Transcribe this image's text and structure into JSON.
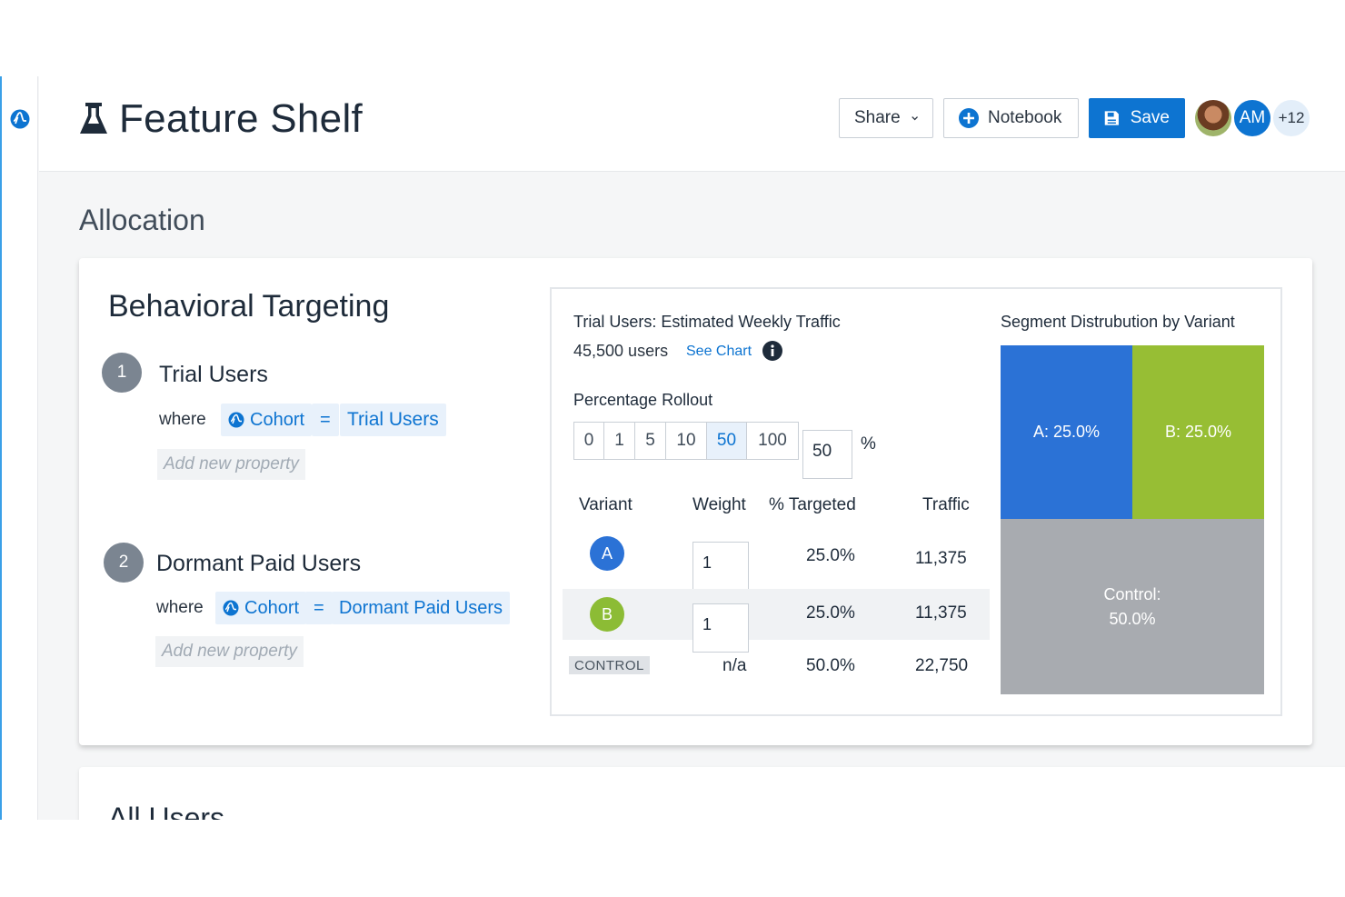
{
  "app": {
    "title": "Feature Shelf",
    "icons": {
      "rail": "amplitude-logo-icon",
      "title": "flask-icon"
    }
  },
  "header": {
    "share_label": "Share",
    "notebook_label": "Notebook",
    "save_label": "Save",
    "avatars": [
      {
        "type": "photo"
      },
      {
        "initials": "AM"
      },
      {
        "more": "+12"
      }
    ],
    "colors": {
      "primary": "#0d74d1"
    }
  },
  "section": {
    "title": "Allocation"
  },
  "targeting": {
    "title": "Behavioral Targeting",
    "segments": [
      {
        "number": "1",
        "name": "Trial Users",
        "where_label": "where",
        "property": "Cohort",
        "operator": "=",
        "value": "Trial Users",
        "add_placeholder": "Add new property"
      },
      {
        "number": "2",
        "name": "Dormant Paid Users",
        "where_label": "where",
        "property": "Cohort",
        "operator": "=",
        "value": "Dormant Paid Users",
        "add_placeholder": "Add new property"
      }
    ]
  },
  "traffic": {
    "title": "Trial Users: Estimated Weekly Traffic",
    "users": "45,500 users",
    "see_chart": "See Chart",
    "rollout_label": "Percentage Rollout",
    "rollout_options": [
      "0",
      "1",
      "5",
      "10",
      "50",
      "100"
    ],
    "rollout_selected": "50",
    "rollout_value": "50",
    "percent_sign": "%",
    "table": {
      "headers": [
        "Variant",
        "Weight",
        "% Targeted",
        "Traffic"
      ],
      "rows": [
        {
          "variant": "A",
          "color": "#2b72d6",
          "weight": "1",
          "targeted": "25.0%",
          "traffic": "11,375"
        },
        {
          "variant": "B",
          "color": "#8cbc35",
          "weight": "1",
          "targeted": "25.0%",
          "traffic": "11,375"
        },
        {
          "variant": "CONTROL",
          "weight": "n/a",
          "targeted": "50.0%",
          "traffic": "22,750"
        }
      ]
    }
  },
  "distribution": {
    "title": "Segment Distrubution by Variant",
    "blocks": [
      {
        "label": "A: 25.0%",
        "color": "#2b72d6"
      },
      {
        "label": "B: 25.0%",
        "color": "#97be34"
      },
      {
        "label_line1": "Control:",
        "label_line2": "50.0%",
        "color": "#a8abb0"
      }
    ]
  },
  "next_section": {
    "title": "All Users"
  }
}
